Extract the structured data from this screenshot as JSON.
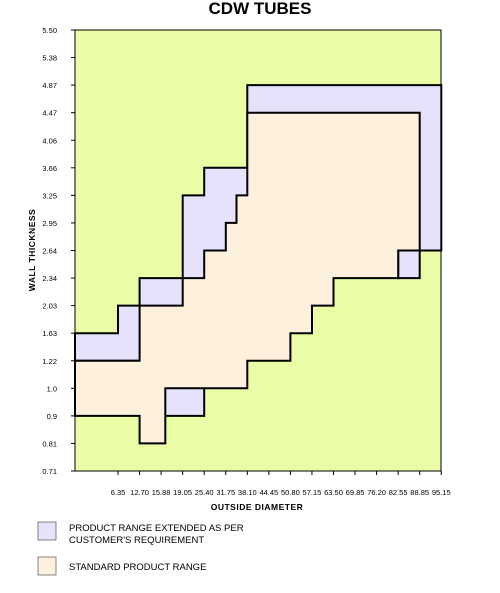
{
  "chart_data": {
    "type": "area",
    "title": "CDW TUBES",
    "xlabel": "OUTSIDE DIAMETER",
    "ylabel": "WALL THICKNESS",
    "x_ticks": [
      "6.35",
      "12.70",
      "15.88",
      "19.05",
      "25.40",
      "31.75",
      "38.10",
      "44.45",
      "50.80",
      "57.15",
      "63.50",
      "69.85",
      "76.20",
      "82.55",
      "88.85",
      "95.15"
    ],
    "y_ticks": [
      "0.71",
      "0.81",
      "0.9",
      "1.0",
      "1.22",
      "1.63",
      "2.03",
      "2.34",
      "2.64",
      "2.95",
      "3.25",
      "3.66",
      "4.06",
      "4.47",
      "4.87",
      "5.38",
      "5.50"
    ],
    "background_color": "#eafda6",
    "series": [
      {
        "name": "PRODUCT RANGE EXTENDED AS PER CUSTOMER'S REQUIREMENT",
        "color": "#e6e2fc",
        "polygon": [
          [
            "0",
            "1.22"
          ],
          [
            "0",
            "1.63"
          ],
          [
            "6.35",
            "1.63"
          ],
          [
            "6.35",
            "2.03"
          ],
          [
            "12.70",
            "2.03"
          ],
          [
            "12.70",
            "2.34"
          ],
          [
            "19.05",
            "2.34"
          ],
          [
            "19.05",
            "3.25"
          ],
          [
            "25.40",
            "3.25"
          ],
          [
            "25.40",
            "3.66"
          ],
          [
            "38.10",
            "3.66"
          ],
          [
            "38.10",
            "4.87"
          ],
          [
            "95.15",
            "4.87"
          ],
          [
            "95.15",
            "2.64"
          ],
          [
            "88.85",
            "2.64"
          ],
          [
            "88.85",
            "2.34"
          ],
          [
            "82.55",
            "2.34"
          ],
          [
            "82.55",
            "2.64"
          ],
          [
            "63.50",
            "2.64"
          ],
          [
            "63.50",
            "2.34"
          ],
          [
            "57.15",
            "2.34"
          ],
          [
            "57.15",
            "2.03"
          ],
          [
            "50.80",
            "2.03"
          ],
          [
            "50.80",
            "1.63"
          ],
          [
            "38.10",
            "1.63"
          ],
          [
            "38.10",
            "1.22"
          ],
          [
            "25.40",
            "1.22"
          ],
          [
            "25.40",
            "0.9"
          ],
          [
            "12.70",
            "0.9"
          ],
          [
            "12.70",
            "1.22"
          ]
        ]
      },
      {
        "name": "STANDARD PRODUCT RANGE",
        "color": "#fdf1de",
        "polygon": [
          [
            "0",
            "0.9"
          ],
          [
            "0",
            "1.22"
          ],
          [
            "12.70",
            "1.22"
          ],
          [
            "12.70",
            "2.03"
          ],
          [
            "19.05",
            "2.03"
          ],
          [
            "19.05",
            "2.34"
          ],
          [
            "25.40",
            "2.34"
          ],
          [
            "25.40",
            "2.64"
          ],
          [
            "31.75",
            "2.64"
          ],
          [
            "31.75",
            "2.95"
          ],
          [
            "34.93",
            "2.95"
          ],
          [
            "34.93",
            "3.25"
          ],
          [
            "38.10",
            "3.25"
          ],
          [
            "38.10",
            "4.47"
          ],
          [
            "88.85",
            "4.47"
          ],
          [
            "88.85",
            "2.64"
          ],
          [
            "82.55",
            "2.64"
          ],
          [
            "82.55",
            "2.34"
          ],
          [
            "63.50",
            "2.34"
          ],
          [
            "63.50",
            "2.03"
          ],
          [
            "57.15",
            "2.03"
          ],
          [
            "57.15",
            "1.63"
          ],
          [
            "50.80",
            "1.63"
          ],
          [
            "50.80",
            "1.22"
          ],
          [
            "38.10",
            "1.22"
          ],
          [
            "38.10",
            "1.0"
          ],
          [
            "25.40",
            "1.0"
          ],
          [
            "25.40",
            "1.0"
          ],
          [
            "16.50",
            "1.0"
          ],
          [
            "16.50",
            "0.81"
          ],
          [
            "12.70",
            "0.81"
          ],
          [
            "12.70",
            "0.9"
          ]
        ]
      }
    ],
    "legend": [
      {
        "label_line1": "PRODUCT RANGE EXTENDED AS PER",
        "label_line2": "CUSTOMER'S REQUIREMENT",
        "color": "#e6e2fc"
      },
      {
        "label_line1": "STANDARD PRODUCT RANGE",
        "label_line2": "",
        "color": "#fdf1de"
      }
    ],
    "legend_placement": "bottom-left",
    "grid": false
  }
}
